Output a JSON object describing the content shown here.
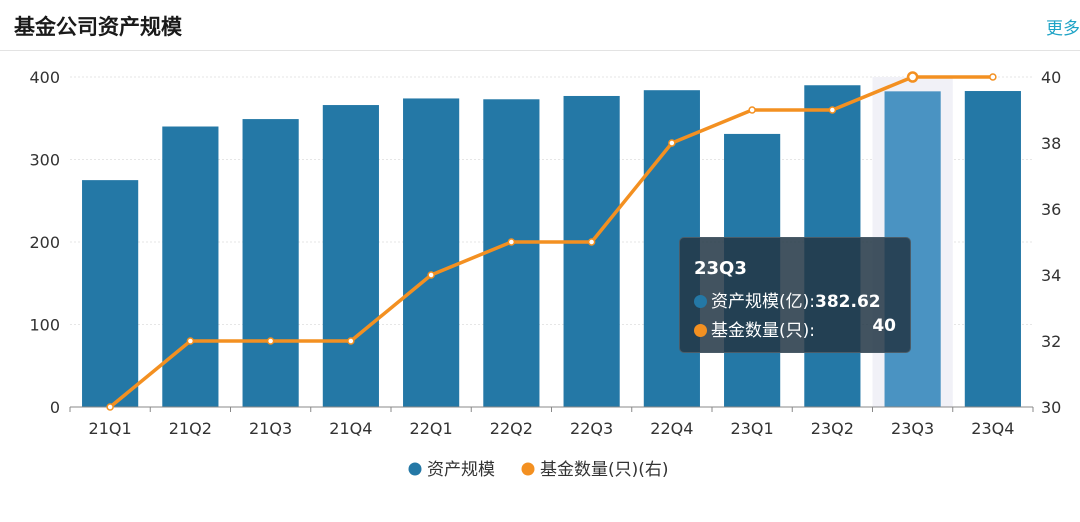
{
  "header": {
    "title": "基金公司资产规模",
    "more_label": "更多"
  },
  "chart_data": {
    "type": "bar",
    "categories": [
      "21Q1",
      "21Q2",
      "21Q3",
      "21Q4",
      "22Q1",
      "22Q2",
      "22Q3",
      "22Q4",
      "23Q1",
      "23Q2",
      "23Q3",
      "23Q4"
    ],
    "series": [
      {
        "name": "资产规模",
        "type": "bar",
        "axis": "left",
        "color": "#2478a6",
        "highlight_color": "#4a93c2",
        "values": [
          275,
          340,
          349,
          366,
          374,
          373,
          377,
          384,
          331,
          390,
          382.62,
          383
        ]
      },
      {
        "name": "基金数量(只)(右)",
        "type": "line",
        "axis": "right",
        "color": "#f39021",
        "values": [
          30,
          32,
          32,
          32,
          34,
          35,
          35,
          38,
          39,
          39,
          40,
          40
        ]
      }
    ],
    "y_left": {
      "min": 0,
      "max": 400,
      "ticks": [
        0,
        100,
        200,
        300,
        400
      ]
    },
    "y_right": {
      "min": 30,
      "max": 40,
      "ticks": [
        30,
        32,
        34,
        36,
        38,
        40
      ]
    },
    "legend_placement": "bottom-center",
    "highlight_index": 10,
    "grid": true
  },
  "tooltip": {
    "title": "23Q3",
    "rows": [
      {
        "label": "资产规模(亿):",
        "value": "382.62",
        "color": "#2478a6"
      },
      {
        "label": "基金数量(只):",
        "value": "40",
        "color": "#f39021"
      }
    ]
  }
}
